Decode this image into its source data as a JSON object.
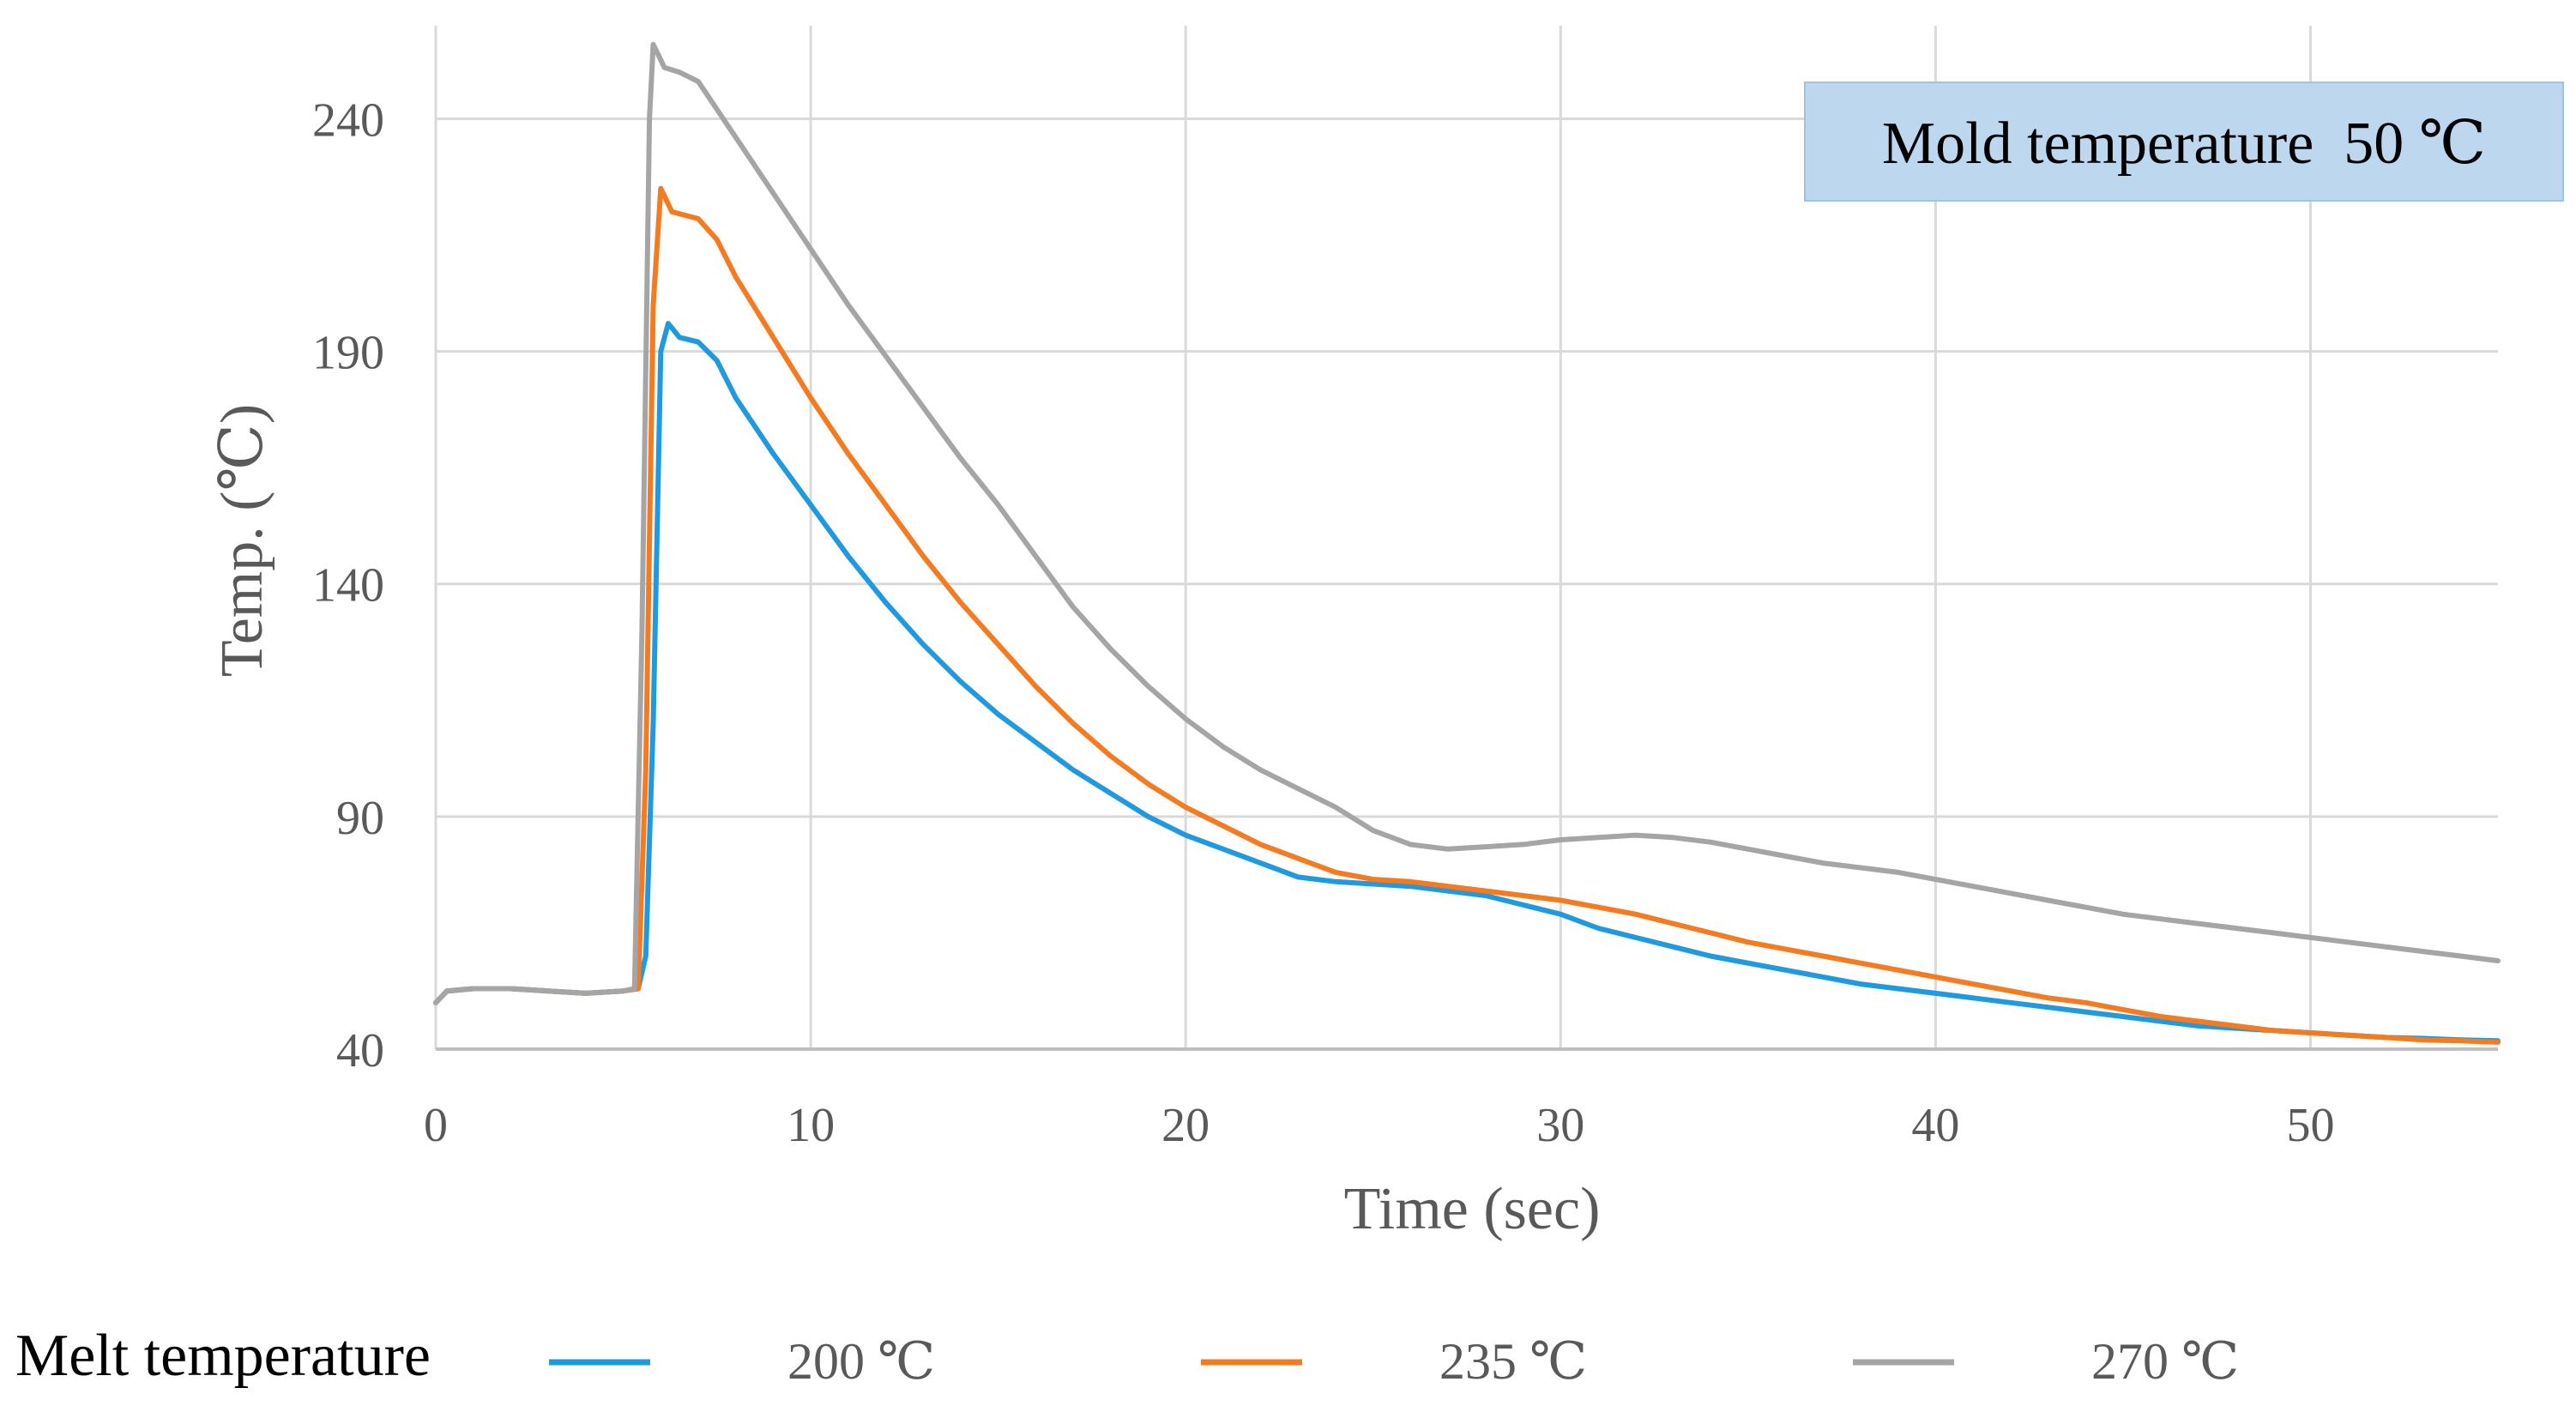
{
  "chart_data": {
    "type": "line",
    "title": "",
    "xlabel": "Time (sec)",
    "ylabel": "Temp. (℃)",
    "xlim": [
      0,
      55
    ],
    "ylim": [
      40,
      260
    ],
    "xticks": [
      "0",
      "10",
      "20",
      "30",
      "40",
      "50"
    ],
    "yticks": [
      "40",
      "90",
      "140",
      "190",
      "240"
    ],
    "grid": true,
    "annotation": "Mold temperature  50 ℃",
    "legend_title": "Melt temperature",
    "legend_position": "bottom",
    "series": [
      {
        "name": "200 ℃",
        "color": "#1f9ae0",
        "points": [
          [
            0,
            50
          ],
          [
            0.3,
            52.5
          ],
          [
            1,
            53
          ],
          [
            2,
            53
          ],
          [
            3,
            52.5
          ],
          [
            4,
            52
          ],
          [
            5,
            52.5
          ],
          [
            5.4,
            53
          ],
          [
            5.6,
            60
          ],
          [
            5.8,
            110
          ],
          [
            6,
            190
          ],
          [
            6.2,
            196
          ],
          [
            6.5,
            193
          ],
          [
            7,
            192
          ],
          [
            7.5,
            188
          ],
          [
            8,
            180
          ],
          [
            9,
            168
          ],
          [
            10,
            157
          ],
          [
            11,
            146
          ],
          [
            12,
            136
          ],
          [
            13,
            127
          ],
          [
            14,
            119
          ],
          [
            15,
            112
          ],
          [
            16,
            106
          ],
          [
            17,
            100
          ],
          [
            18,
            95
          ],
          [
            19,
            90
          ],
          [
            20,
            86
          ],
          [
            21,
            83
          ],
          [
            22,
            80
          ],
          [
            23,
            77
          ],
          [
            24,
            76
          ],
          [
            25,
            75.5
          ],
          [
            26,
            75
          ],
          [
            27,
            74
          ],
          [
            28,
            73
          ],
          [
            29,
            71
          ],
          [
            30,
            69
          ],
          [
            31,
            66
          ],
          [
            32,
            64
          ],
          [
            33,
            62
          ],
          [
            34,
            60
          ],
          [
            35,
            58.5
          ],
          [
            36,
            57
          ],
          [
            37,
            55.5
          ],
          [
            38,
            54
          ],
          [
            39,
            53
          ],
          [
            40,
            52
          ],
          [
            41,
            51
          ],
          [
            42,
            50
          ],
          [
            43,
            49
          ],
          [
            44,
            48
          ],
          [
            45,
            47
          ],
          [
            46,
            46
          ],
          [
            47,
            45
          ],
          [
            48,
            44.5
          ],
          [
            49,
            44
          ],
          [
            50,
            43.5
          ],
          [
            51,
            43
          ],
          [
            52,
            42.5
          ],
          [
            53,
            42.3
          ],
          [
            54,
            42
          ],
          [
            55,
            41.8
          ]
        ]
      },
      {
        "name": "235 ℃",
        "color": "#f47b20",
        "points": [
          [
            0,
            50
          ],
          [
            0.3,
            52.5
          ],
          [
            1,
            53
          ],
          [
            2,
            53
          ],
          [
            3,
            52.5
          ],
          [
            4,
            52
          ],
          [
            5,
            52.5
          ],
          [
            5.4,
            53
          ],
          [
            5.6,
            100
          ],
          [
            5.8,
            200
          ],
          [
            6,
            225
          ],
          [
            6.3,
            220
          ],
          [
            7,
            218.5
          ],
          [
            7.5,
            214
          ],
          [
            8,
            206
          ],
          [
            9,
            193
          ],
          [
            10,
            180
          ],
          [
            11,
            168
          ],
          [
            12,
            157
          ],
          [
            13,
            146
          ],
          [
            14,
            136
          ],
          [
            15,
            127
          ],
          [
            16,
            118
          ],
          [
            17,
            110
          ],
          [
            18,
            103
          ],
          [
            19,
            97
          ],
          [
            20,
            92
          ],
          [
            21,
            88
          ],
          [
            22,
            84
          ],
          [
            23,
            81
          ],
          [
            24,
            78
          ],
          [
            25,
            76.5
          ],
          [
            26,
            76
          ],
          [
            27,
            75
          ],
          [
            28,
            74
          ],
          [
            29,
            73
          ],
          [
            30,
            72
          ],
          [
            31,
            70.5
          ],
          [
            32,
            69
          ],
          [
            33,
            67
          ],
          [
            34,
            65
          ],
          [
            35,
            63
          ],
          [
            36,
            61.5
          ],
          [
            37,
            60
          ],
          [
            38,
            58.5
          ],
          [
            39,
            57
          ],
          [
            40,
            55.5
          ],
          [
            41,
            54
          ],
          [
            42,
            52.5
          ],
          [
            43,
            51
          ],
          [
            44,
            50
          ],
          [
            45,
            48.5
          ],
          [
            46,
            47
          ],
          [
            47,
            46
          ],
          [
            48,
            45
          ],
          [
            49,
            44
          ],
          [
            50,
            43.5
          ],
          [
            51,
            43
          ],
          [
            52,
            42.5
          ],
          [
            53,
            42
          ],
          [
            54,
            41.8
          ],
          [
            55,
            41.5
          ]
        ]
      },
      {
        "name": "270 ℃",
        "color": "#a5a5a5",
        "points": [
          [
            0,
            50
          ],
          [
            0.3,
            52.5
          ],
          [
            1,
            53
          ],
          [
            2,
            53
          ],
          [
            3,
            52.5
          ],
          [
            4,
            52
          ],
          [
            5,
            52.5
          ],
          [
            5.3,
            53
          ],
          [
            5.5,
            130
          ],
          [
            5.7,
            240
          ],
          [
            5.8,
            256
          ],
          [
            6.1,
            251
          ],
          [
            6.5,
            250
          ],
          [
            7,
            248
          ],
          [
            8,
            236
          ],
          [
            9,
            224
          ],
          [
            10,
            212
          ],
          [
            11,
            200
          ],
          [
            12,
            189
          ],
          [
            13,
            178
          ],
          [
            14,
            167
          ],
          [
            15,
            157
          ],
          [
            16,
            146
          ],
          [
            17,
            135
          ],
          [
            18,
            126
          ],
          [
            19,
            118
          ],
          [
            20,
            111
          ],
          [
            21,
            105
          ],
          [
            22,
            100
          ],
          [
            23,
            96
          ],
          [
            24,
            92
          ],
          [
            25,
            87
          ],
          [
            26,
            84
          ],
          [
            27,
            83
          ],
          [
            28,
            83.5
          ],
          [
            29,
            84
          ],
          [
            30,
            85
          ],
          [
            31,
            85.5
          ],
          [
            32,
            86
          ],
          [
            33,
            85.5
          ],
          [
            34,
            84.5
          ],
          [
            35,
            83
          ],
          [
            36,
            81.5
          ],
          [
            37,
            80
          ],
          [
            38,
            79
          ],
          [
            39,
            78
          ],
          [
            40,
            76.5
          ],
          [
            41,
            75
          ],
          [
            42,
            73.5
          ],
          [
            43,
            72
          ],
          [
            44,
            70.5
          ],
          [
            45,
            69
          ],
          [
            46,
            68
          ],
          [
            47,
            67
          ],
          [
            48,
            66
          ],
          [
            49,
            65
          ],
          [
            50,
            64
          ],
          [
            51,
            63
          ],
          [
            52,
            62
          ],
          [
            53,
            61
          ],
          [
            54,
            60
          ],
          [
            55,
            59
          ]
        ]
      }
    ]
  }
}
